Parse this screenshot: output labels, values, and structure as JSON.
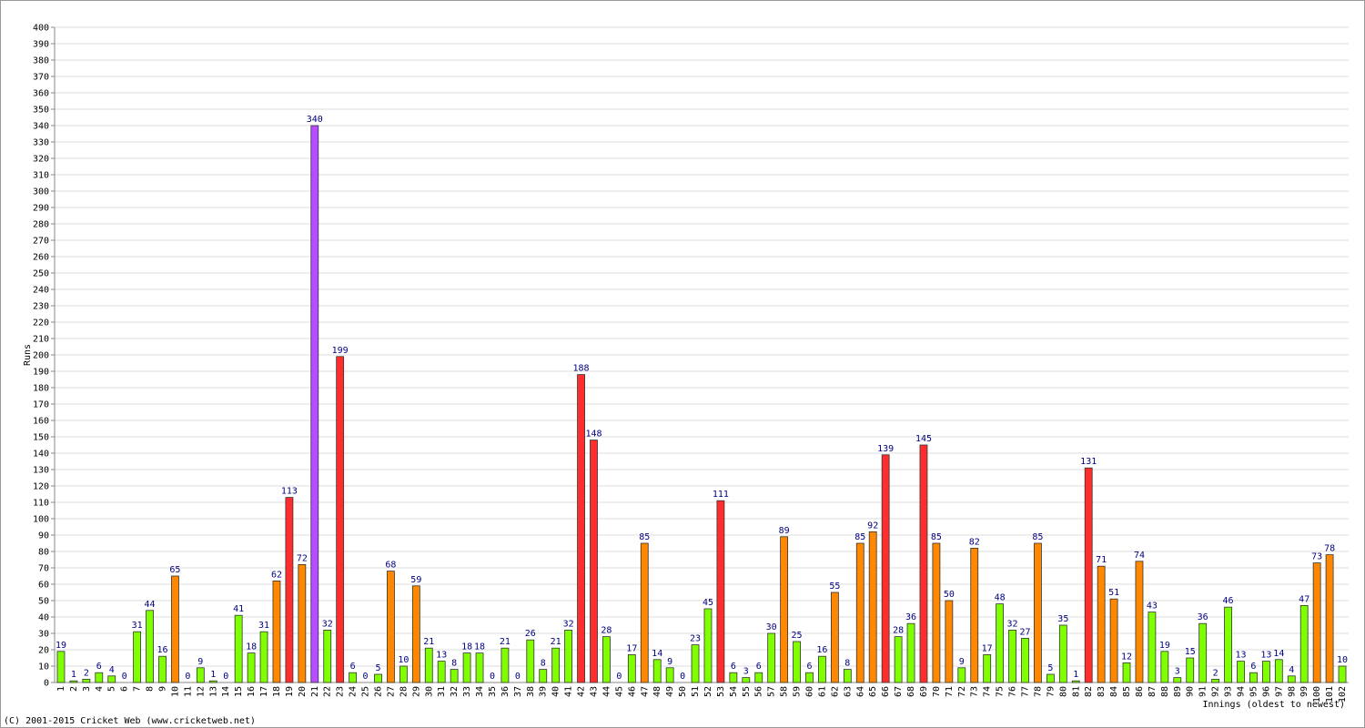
{
  "chart_data": {
    "type": "bar",
    "y_label": "Runs",
    "x_label": "Innings (oldest to newest)",
    "footer": "(C) 2001-2015 Cricket Web (www.cricketweb.net)",
    "categories": [
      "1",
      "2",
      "3",
      "4",
      "5",
      "6",
      "7",
      "8",
      "9",
      "10",
      "11",
      "12",
      "13",
      "14",
      "15",
      "16",
      "17",
      "18",
      "19",
      "20",
      "21",
      "22",
      "23",
      "24",
      "25",
      "26",
      "27",
      "28",
      "29",
      "30",
      "31",
      "32",
      "33",
      "34",
      "35",
      "36",
      "37",
      "38",
      "39",
      "40",
      "41",
      "42",
      "43",
      "44",
      "45",
      "46",
      "47",
      "48",
      "49",
      "50",
      "51",
      "52",
      "53",
      "54",
      "55",
      "56",
      "57",
      "58",
      "59",
      "60",
      "61",
      "62",
      "63",
      "64",
      "65",
      "66",
      "67",
      "68",
      "69",
      "70",
      "71",
      "72",
      "73",
      "74",
      "75",
      "76",
      "77",
      "78",
      "79",
      "80",
      "81",
      "82",
      "83",
      "84",
      "85",
      "86",
      "87",
      "88",
      "89",
      "90",
      "91",
      "92",
      "93",
      "94",
      "95",
      "96",
      "97",
      "98",
      "99",
      "100",
      "101",
      "102"
    ],
    "values": [
      19,
      1,
      2,
      6,
      4,
      0,
      31,
      44,
      16,
      65,
      0,
      9,
      1,
      0,
      41,
      18,
      31,
      62,
      113,
      72,
      340,
      32,
      199,
      6,
      0,
      5,
      68,
      10,
      59,
      21,
      13,
      8,
      18,
      18,
      0,
      21,
      0,
      26,
      8,
      21,
      32,
      188,
      148,
      28,
      0,
      17,
      85,
      14,
      9,
      0,
      23,
      45,
      111,
      6,
      3,
      6,
      30,
      89,
      25,
      6,
      16,
      55,
      8,
      85,
      92,
      139,
      28,
      36,
      145,
      85,
      50,
      9,
      82,
      17,
      48,
      32,
      27,
      85,
      5,
      35,
      1,
      131,
      71,
      51,
      12,
      74,
      43,
      19,
      3,
      15,
      36,
      2,
      46,
      13,
      6,
      13,
      14,
      4,
      47,
      73,
      78,
      10
    ],
    "colors": [
      "#80ff00",
      "#80ff00",
      "#80ff00",
      "#80ff00",
      "#80ff00",
      "#80ff00",
      "#80ff00",
      "#80ff00",
      "#80ff00",
      "#ff8800",
      "#80ff00",
      "#80ff00",
      "#80ff00",
      "#80ff00",
      "#80ff00",
      "#80ff00",
      "#80ff00",
      "#ff8800",
      "#ff2e2e",
      "#ff8800",
      "#b84cff",
      "#80ff00",
      "#ff2e2e",
      "#80ff00",
      "#80ff00",
      "#80ff00",
      "#ff8800",
      "#80ff00",
      "#ff8800",
      "#80ff00",
      "#80ff00",
      "#80ff00",
      "#80ff00",
      "#80ff00",
      "#80ff00",
      "#80ff00",
      "#80ff00",
      "#80ff00",
      "#80ff00",
      "#80ff00",
      "#80ff00",
      "#ff2e2e",
      "#ff2e2e",
      "#80ff00",
      "#80ff00",
      "#80ff00",
      "#ff8800",
      "#80ff00",
      "#80ff00",
      "#80ff00",
      "#80ff00",
      "#80ff00",
      "#ff2e2e",
      "#80ff00",
      "#80ff00",
      "#80ff00",
      "#80ff00",
      "#ff8800",
      "#80ff00",
      "#80ff00",
      "#80ff00",
      "#ff8800",
      "#80ff00",
      "#ff8800",
      "#ff8800",
      "#ff2e2e",
      "#80ff00",
      "#80ff00",
      "#ff2e2e",
      "#ff8800",
      "#ff8800",
      "#80ff00",
      "#ff8800",
      "#80ff00",
      "#80ff00",
      "#80ff00",
      "#80ff00",
      "#ff8800",
      "#80ff00",
      "#80ff00",
      "#80ff00",
      "#ff2e2e",
      "#ff8800",
      "#ff8800",
      "#80ff00",
      "#ff8800",
      "#80ff00",
      "#80ff00",
      "#80ff00",
      "#80ff00",
      "#80ff00",
      "#80ff00",
      "#80ff00",
      "#80ff00",
      "#80ff00",
      "#80ff00",
      "#80ff00",
      "#80ff00",
      "#80ff00",
      "#ff8800",
      "#ff8800",
      "#80ff00"
    ],
    "ylim": [
      0,
      400
    ],
    "yticks": [
      0,
      10,
      20,
      30,
      40,
      50,
      60,
      70,
      80,
      90,
      100,
      110,
      120,
      130,
      140,
      150,
      160,
      170,
      180,
      190,
      200,
      210,
      220,
      230,
      240,
      250,
      260,
      270,
      280,
      290,
      300,
      310,
      320,
      330,
      340,
      350,
      360,
      370,
      380,
      390,
      400
    ],
    "grid": true
  }
}
